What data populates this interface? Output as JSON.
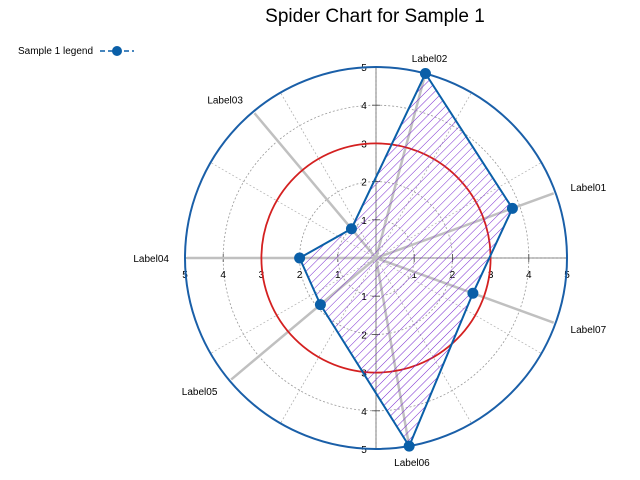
{
  "chart_data": {
    "type": "radar",
    "title": "Spider Chart for Sample 1",
    "rmax": 5,
    "ticks": [
      1,
      2,
      3,
      4,
      5
    ],
    "categories": [
      {
        "label": "Label01",
        "angle_deg": 20
      },
      {
        "label": "Label02",
        "angle_deg": 75
      },
      {
        "label": "Label03",
        "angle_deg": 130
      },
      {
        "label": "Label04",
        "angle_deg": 180
      },
      {
        "label": "Label05",
        "angle_deg": 220
      },
      {
        "label": "Label06",
        "angle_deg": 280
      },
      {
        "label": "Label07",
        "angle_deg": 340
      }
    ],
    "series": [
      {
        "name": "Sample 1 legend",
        "values": [
          3.8,
          5.0,
          1.0,
          2.0,
          1.9,
          5.0,
          2.7
        ],
        "color": "#0a5fa8",
        "fill_hatch": "#7a2bd0"
      }
    ],
    "reference_circle": {
      "radius": 3,
      "color": "#d42020"
    },
    "outer_ring_color": "#1a5fa8",
    "grid": "dotted"
  },
  "legend": {
    "label": "Sample 1 legend"
  }
}
